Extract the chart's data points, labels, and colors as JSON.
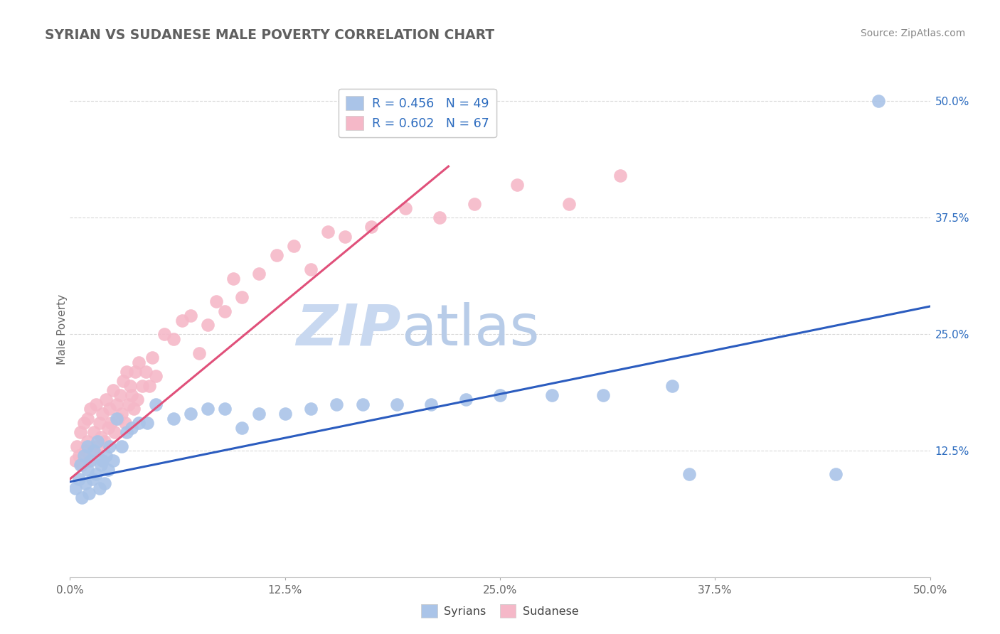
{
  "title": "SYRIAN VS SUDANESE MALE POVERTY CORRELATION CHART",
  "source_text": "Source: ZipAtlas.com",
  "ylabel": "Male Poverty",
  "xlim": [
    0.0,
    0.5
  ],
  "ylim": [
    -0.01,
    0.52
  ],
  "xtick_labels": [
    "0.0%",
    "12.5%",
    "25.0%",
    "37.5%",
    "50.0%"
  ],
  "xtick_vals": [
    0.0,
    0.125,
    0.25,
    0.375,
    0.5
  ],
  "ytick_labels": [
    "12.5%",
    "25.0%",
    "37.5%",
    "50.0%"
  ],
  "ytick_vals": [
    0.125,
    0.25,
    0.375,
    0.5
  ],
  "syrians_R": "0.456",
  "syrians_N": "49",
  "sudanese_R": "0.602",
  "sudanese_N": "67",
  "syrian_color": "#aac4e8",
  "sudanese_color": "#f5b8c8",
  "syrian_line_color": "#2b5cbf",
  "sudanese_line_color": "#e0507a",
  "legend_text_color": "#2b6bbf",
  "title_color": "#606060",
  "watermark_zip_color": "#c8d8f0",
  "watermark_atlas_color": "#b8cce8",
  "grid_color": "#d0d0d0",
  "syrians_x": [
    0.003,
    0.005,
    0.006,
    0.007,
    0.008,
    0.009,
    0.01,
    0.01,
    0.011,
    0.012,
    0.013,
    0.014,
    0.015,
    0.016,
    0.017,
    0.018,
    0.019,
    0.02,
    0.021,
    0.022,
    0.023,
    0.025,
    0.027,
    0.03,
    0.033,
    0.036,
    0.04,
    0.045,
    0.05,
    0.06,
    0.07,
    0.08,
    0.09,
    0.1,
    0.11,
    0.125,
    0.14,
    0.155,
    0.17,
    0.19,
    0.21,
    0.23,
    0.25,
    0.28,
    0.31,
    0.35,
    0.36,
    0.445,
    0.47
  ],
  "syrians_y": [
    0.085,
    0.095,
    0.11,
    0.075,
    0.12,
    0.09,
    0.13,
    0.105,
    0.08,
    0.115,
    0.095,
    0.125,
    0.1,
    0.135,
    0.085,
    0.11,
    0.115,
    0.09,
    0.12,
    0.105,
    0.13,
    0.115,
    0.16,
    0.13,
    0.145,
    0.15,
    0.155,
    0.155,
    0.175,
    0.16,
    0.165,
    0.17,
    0.17,
    0.15,
    0.165,
    0.165,
    0.17,
    0.175,
    0.175,
    0.175,
    0.175,
    0.18,
    0.185,
    0.185,
    0.185,
    0.195,
    0.1,
    0.1,
    0.5
  ],
  "sudanese_x": [
    0.003,
    0.004,
    0.005,
    0.006,
    0.007,
    0.008,
    0.009,
    0.01,
    0.01,
    0.011,
    0.012,
    0.013,
    0.014,
    0.015,
    0.016,
    0.017,
    0.018,
    0.019,
    0.02,
    0.021,
    0.022,
    0.023,
    0.024,
    0.025,
    0.026,
    0.027,
    0.028,
    0.029,
    0.03,
    0.031,
    0.032,
    0.033,
    0.034,
    0.035,
    0.036,
    0.037,
    0.038,
    0.039,
    0.04,
    0.042,
    0.044,
    0.046,
    0.048,
    0.05,
    0.055,
    0.06,
    0.065,
    0.07,
    0.075,
    0.08,
    0.085,
    0.09,
    0.095,
    0.1,
    0.11,
    0.12,
    0.13,
    0.14,
    0.15,
    0.16,
    0.175,
    0.195,
    0.215,
    0.235,
    0.26,
    0.29,
    0.32
  ],
  "sudanese_y": [
    0.115,
    0.13,
    0.12,
    0.145,
    0.11,
    0.155,
    0.125,
    0.16,
    0.135,
    0.115,
    0.17,
    0.125,
    0.145,
    0.175,
    0.13,
    0.155,
    0.14,
    0.165,
    0.135,
    0.18,
    0.15,
    0.17,
    0.155,
    0.19,
    0.145,
    0.175,
    0.16,
    0.185,
    0.165,
    0.2,
    0.155,
    0.21,
    0.175,
    0.195,
    0.185,
    0.17,
    0.21,
    0.18,
    0.22,
    0.195,
    0.21,
    0.195,
    0.225,
    0.205,
    0.25,
    0.245,
    0.265,
    0.27,
    0.23,
    0.26,
    0.285,
    0.275,
    0.31,
    0.29,
    0.315,
    0.335,
    0.345,
    0.32,
    0.36,
    0.355,
    0.365,
    0.385,
    0.375,
    0.39,
    0.41,
    0.39,
    0.42
  ],
  "syrian_line_x": [
    0.0,
    0.5
  ],
  "syrian_line_y": [
    0.092,
    0.28
  ],
  "sudanese_line_x": [
    0.0,
    0.22
  ],
  "sudanese_line_y": [
    0.095,
    0.43
  ]
}
